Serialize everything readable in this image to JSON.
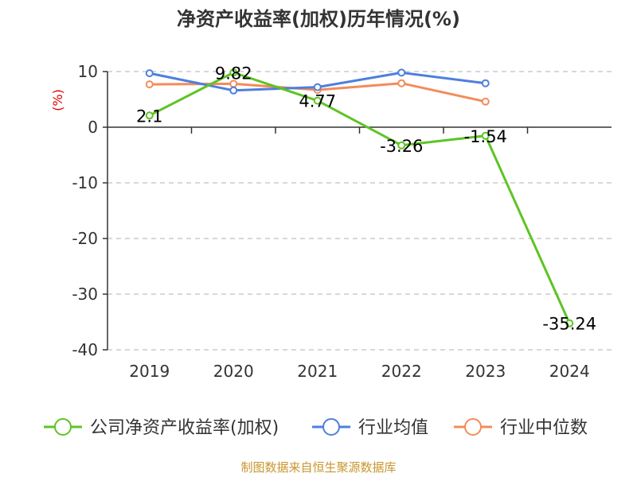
{
  "chart_data": {
    "type": "line",
    "title": "净资产收益率(加权)历年情况(%)",
    "ylabel": "(%)",
    "categories": [
      "2019",
      "2020",
      "2021",
      "2022",
      "2023",
      "2024"
    ],
    "ylim": [
      -40,
      10
    ],
    "yticks": [
      10,
      0,
      -10,
      -20,
      -30,
      -40
    ],
    "grid": "horizontal-dashed",
    "legend_position": "bottom",
    "series": [
      {
        "name": "公司净资产收益率(加权)",
        "color": "#5ec424",
        "values": [
          2.1,
          9.82,
          4.77,
          -3.26,
          -1.54,
          -35.24
        ],
        "labels": [
          "2.1",
          "9.82",
          "4.77",
          "-3.26",
          "-1.54",
          "-35.24"
        ]
      },
      {
        "name": "行业均值",
        "color": "#4e7fdd",
        "values": [
          9.7,
          6.6,
          7.2,
          9.8,
          7.9,
          null
        ]
      },
      {
        "name": "行业中位数",
        "color": "#f28c5a",
        "values": [
          7.7,
          7.8,
          6.7,
          7.9,
          4.6,
          null
        ]
      }
    ]
  },
  "source_text": "制图数据来自恒生聚源数据库"
}
